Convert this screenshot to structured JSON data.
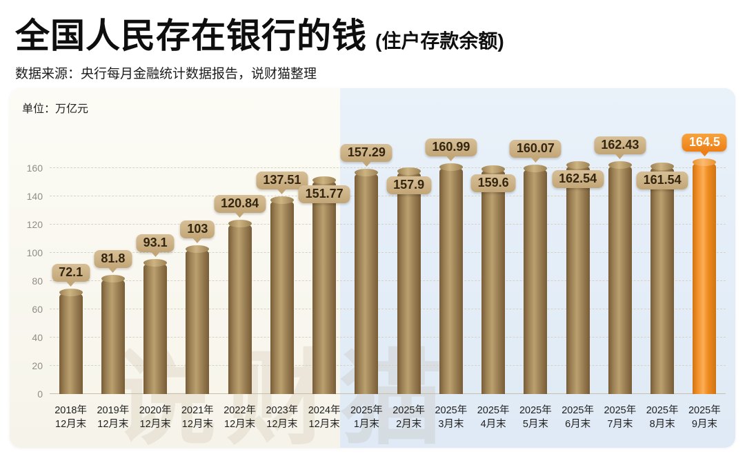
{
  "header": {
    "title": "全国人民存在银行的钱",
    "title_suffix": "(住户存款余额)",
    "subtitle": "数据来源：央行每月金融统计数据报告，说财猫整理"
  },
  "chart": {
    "unit_label": "单位：万亿元",
    "watermark": "说财猫"
  },
  "chart_data": {
    "type": "bar",
    "title": "全国人民存在银行的钱（住户存款余额）",
    "unit": "万亿元",
    "categories": [
      "2018年12月末",
      "2019年12月末",
      "2020年12月末",
      "2021年12月末",
      "2022年12月末",
      "2023年12月末",
      "2024年12月末",
      "2025年1月末",
      "2025年2月末",
      "2025年3月末",
      "2025年4月末",
      "2025年5月末",
      "2025年6月末",
      "2025年7月末",
      "2025年8月末",
      "2025年9月末"
    ],
    "values": [
      72.1,
      81.8,
      93.1,
      103,
      120.84,
      137.51,
      151.77,
      157.29,
      157.9,
      160.99,
      159.6,
      160.07,
      162.54,
      162.43,
      161.54,
      164.5
    ],
    "labels": [
      "72.1",
      "81.8",
      "93.1",
      "103",
      "120.84",
      "137.51",
      "151.77",
      "157.29",
      "157.9",
      "160.99",
      "159.6",
      "160.07",
      "162.54",
      "162.43",
      "161.54",
      "164.5"
    ],
    "label_position": [
      "above",
      "above",
      "above",
      "above",
      "above",
      "above",
      "overlap",
      "above",
      "overlap",
      "above",
      "overlap",
      "above",
      "overlap",
      "above",
      "overlap",
      "above"
    ],
    "highlight_index": 15,
    "y_ticks": [
      0,
      20,
      40,
      60,
      80,
      100,
      120,
      140,
      160
    ],
    "ylim": [
      0,
      170
    ],
    "grid": "horizontal-dashed",
    "legend": "none",
    "colors": {
      "bar": "#a1865a",
      "bar_top": "#cdb482",
      "highlight_bar": "#f08c1f",
      "highlight_bar_top": "#fbbb70",
      "badge_bg": "#c9ae80",
      "badge_text": "#33250f",
      "highlight_badge_bg": "#ef8c1f",
      "highlight_badge_text": "#ffffff",
      "panel_left_bg": "#faf8f1",
      "panel_right_bg": "#e6eff8"
    }
  }
}
